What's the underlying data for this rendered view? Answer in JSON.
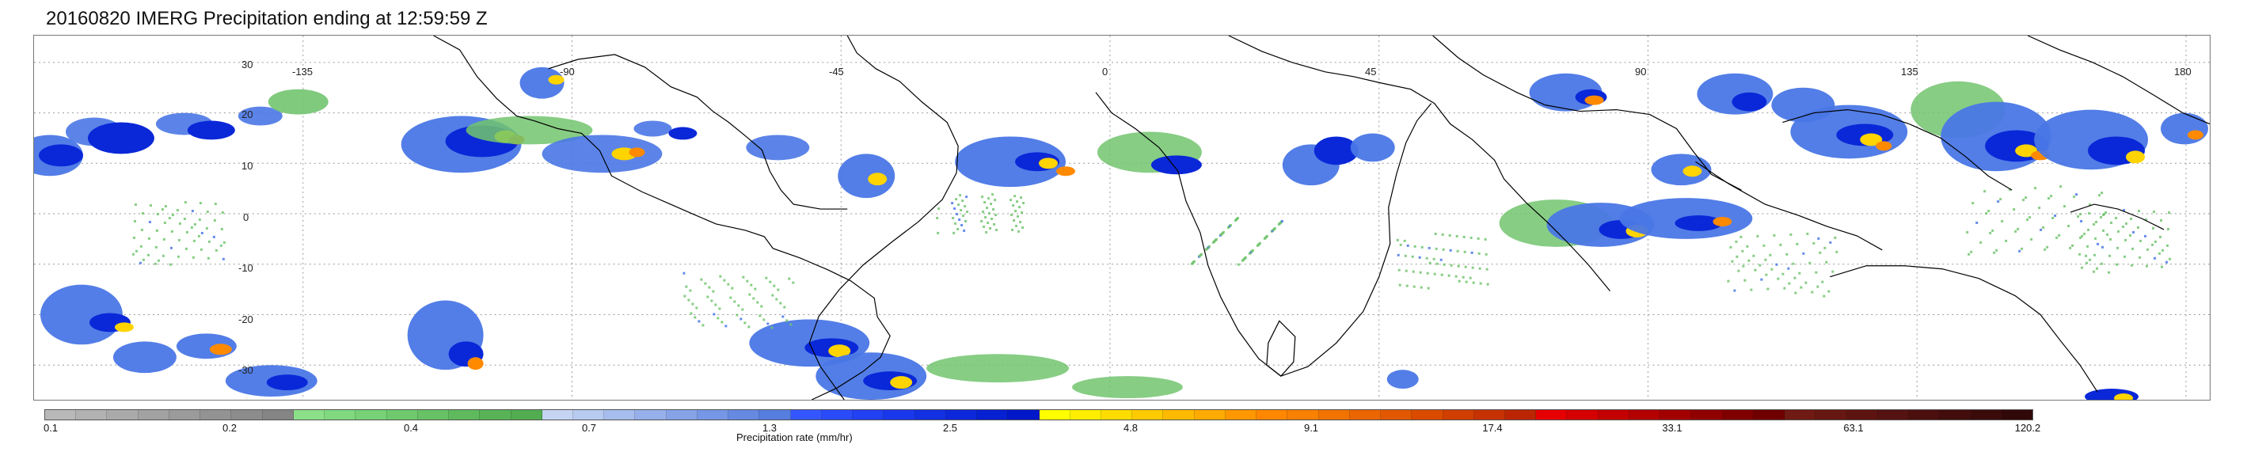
{
  "title": "20160820 IMERG Precipitation ending at 12:59:59 Z",
  "map": {
    "lon_labels": [
      "-135",
      "-90",
      "-45",
      "0",
      "45",
      "90",
      "135",
      "180"
    ],
    "lat_labels": [
      "30",
      "20",
      "10",
      "0",
      "-10",
      "-20",
      "-30"
    ],
    "grid_lines": true,
    "coastline_color": "#000000",
    "grid_color": "#9a9a9a"
  },
  "colorbar": {
    "title": "Precipitation rate (mm/hr)",
    "ticks": [
      "0.1",
      "0.2",
      "0.4",
      "0.7",
      "1.3",
      "2.5",
      "4.8",
      "9.1",
      "17.4",
      "33.1",
      "63.1",
      "120.2"
    ],
    "colors": [
      "#b9b9b9",
      "#b2b2b2",
      "#aaaaaa",
      "#a2a2a2",
      "#9b9b9b",
      "#939393",
      "#8c8c8c",
      "#858585",
      "#8be089",
      "#80d97f",
      "#77d176",
      "#6fc96d",
      "#67c165",
      "#5fba5d",
      "#58b356",
      "#52ac50",
      "#c5d4f3",
      "#b7caf0",
      "#a7bdee",
      "#97b0eb",
      "#86a3e8",
      "#7697e5",
      "#668ae2",
      "#567edf",
      "#3456ff",
      "#2a4bfa",
      "#2241f2",
      "#1a38eb",
      "#1330e2",
      "#0c28da",
      "#0620d2",
      "#0018ca",
      "#ffff00",
      "#ffee00",
      "#ffdc00",
      "#ffcb00",
      "#ffba00",
      "#ffaa00",
      "#ff9800",
      "#ff8700",
      "#f98000",
      "#f27300",
      "#eb6600",
      "#e25800",
      "#da4b00",
      "#d03e00",
      "#c63200",
      "#bb2600",
      "#e60000",
      "#d50000",
      "#c40000",
      "#b30000",
      "#a20000",
      "#910000",
      "#800000",
      "#700000",
      "#6f1a12",
      "#661712",
      "#5d1411",
      "#541210",
      "#4b0f0e",
      "#420d0c",
      "#3a0b0a",
      "#310808"
    ]
  },
  "precip_colors": {
    "light": "#72c46f",
    "moderate": "#4a77e6",
    "heavy": "#0a28d8",
    "intense": "#ffd400",
    "severe": "#ff8a00",
    "extreme": "#d90000"
  }
}
